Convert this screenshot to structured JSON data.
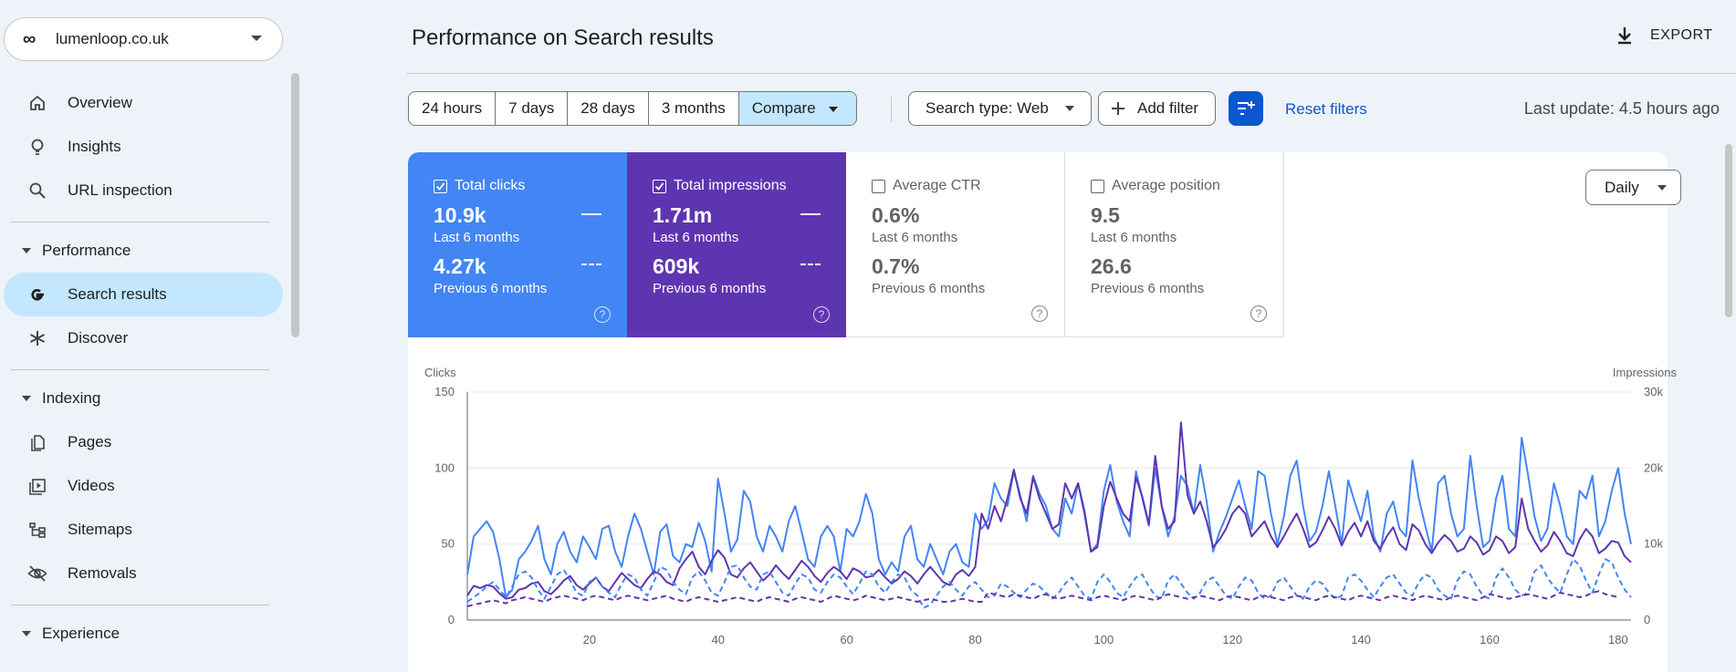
{
  "property": {
    "logo": "∞",
    "name": "lumenloop.co.uk"
  },
  "sidebar": {
    "items_top": [
      {
        "label": "Overview",
        "icon": "home-icon"
      },
      {
        "label": "Insights",
        "icon": "lightbulb-icon"
      },
      {
        "label": "URL inspection",
        "icon": "search-icon"
      }
    ],
    "performance": {
      "label": "Performance",
      "items": [
        {
          "label": "Search results",
          "icon": "google-g-icon"
        },
        {
          "label": "Discover",
          "icon": "asterisk-icon"
        }
      ]
    },
    "indexing": {
      "label": "Indexing",
      "items": [
        {
          "label": "Pages",
          "icon": "pages-icon"
        },
        {
          "label": "Videos",
          "icon": "video-icon"
        },
        {
          "label": "Sitemaps",
          "icon": "sitemap-icon"
        },
        {
          "label": "Removals",
          "icon": "eye-off-icon"
        }
      ]
    },
    "experience": {
      "label": "Experience"
    }
  },
  "header": {
    "title": "Performance on Search results",
    "export_label": "EXPORT"
  },
  "filters": {
    "ranges": [
      "24 hours",
      "7 days",
      "28 days",
      "3 months",
      "Compare"
    ],
    "search_type": "Search type: Web",
    "add_filter": "Add filter",
    "reset": "Reset filters",
    "last_update": "Last update: 4.5 hours ago"
  },
  "metrics": {
    "clicks": {
      "label": "Total clicks",
      "v1": "10.9k",
      "s1": "Last 6 months",
      "v2": "4.27k",
      "s2": "Previous 6 months"
    },
    "impressions": {
      "label": "Total impressions",
      "v1": "1.71m",
      "s1": "Last 6 months",
      "v2": "609k",
      "s2": "Previous 6 months"
    },
    "ctr": {
      "label": "Average CTR",
      "v1": "0.6%",
      "s1": "Last 6 months",
      "v2": "0.7%",
      "s2": "Previous 6 months"
    },
    "position": {
      "label": "Average position",
      "v1": "9.5",
      "s1": "Last 6 months",
      "v2": "26.6",
      "s2": "Previous 6 months"
    },
    "help": "?"
  },
  "granularity": "Daily",
  "chart_data": {
    "type": "line",
    "ylabel": "Clicks",
    "y2label": "Impressions",
    "ylim": [
      0,
      150
    ],
    "y2lim": [
      0,
      30000
    ],
    "yticks": [
      "0",
      "50",
      "100",
      "150"
    ],
    "y2ticks": [
      "0",
      "10k",
      "20k",
      "30k"
    ],
    "xticks": [
      20,
      40,
      60,
      80,
      100,
      120,
      140,
      160,
      180
    ],
    "xlim": [
      1,
      182
    ],
    "grid": true,
    "colors": {
      "clicks": "#4285f4",
      "impressions": "#5e35b1"
    },
    "series": [
      {
        "name": "Total clicks",
        "axis": "left",
        "style": "solid",
        "color": "#4285f4",
        "values": [
          30,
          55,
          60,
          65,
          58,
          40,
          15,
          20,
          40,
          45,
          52,
          62,
          40,
          30,
          50,
          58,
          45,
          38,
          55,
          48,
          40,
          60,
          62,
          45,
          35,
          55,
          70,
          60,
          45,
          30,
          58,
          63,
          42,
          38,
          50,
          48,
          64,
          52,
          32,
          93,
          70,
          45,
          53,
          85,
          78,
          55,
          45,
          62,
          55,
          45,
          65,
          75,
          58,
          40,
          35,
          55,
          62,
          55,
          32,
          60,
          55,
          65,
          83,
          70,
          40,
          30,
          38,
          32,
          55,
          62,
          40,
          35,
          50,
          40,
          30,
          45,
          50,
          38,
          35,
          70,
          60,
          66,
          90,
          80,
          75,
          98,
          82,
          65,
          95,
          83,
          75,
          60,
          55,
          80,
          70,
          90,
          72,
          45,
          50,
          85,
          102,
          78,
          65,
          55,
          98,
          80,
          62,
          100,
          75,
          55,
          68,
          95,
          88,
          70,
          102,
          78,
          45,
          58,
          68,
          80,
          92,
          75,
          60,
          98,
          95,
          70,
          50,
          68,
          95,
          105,
          75,
          52,
          58,
          75,
          98,
          75,
          50,
          92,
          78,
          65,
          85,
          55,
          45,
          70,
          78,
          60,
          55,
          105,
          80,
          62,
          45,
          90,
          95,
          70,
          55,
          60,
          108,
          75,
          48,
          52,
          80,
          95,
          60,
          55,
          120,
          95,
          68,
          52,
          60,
          90,
          75,
          55,
          50,
          85,
          80,
          95,
          55,
          65,
          85,
          100,
          70,
          50
        ]
      },
      {
        "name": "Total impressions",
        "axis": "right",
        "style": "solid",
        "color": "#5e35b1",
        "values": [
          3200,
          4500,
          4200,
          4600,
          4400,
          3500,
          2800,
          3000,
          4000,
          4200,
          4800,
          5000,
          3800,
          3400,
          4200,
          5200,
          5800,
          4600,
          4000,
          4800,
          5600,
          4400,
          3800,
          5000,
          6200,
          5400,
          4600,
          4200,
          5400,
          6400,
          6000,
          5000,
          4600,
          6800,
          8000,
          9000,
          7000,
          6000,
          7800,
          9200,
          8200,
          6000,
          5600,
          6800,
          7600,
          6400,
          5200,
          6000,
          7200,
          6200,
          5400,
          6600,
          7800,
          7000,
          5800,
          5000,
          6200,
          7000,
          6400,
          5400,
          6800,
          6400,
          5600,
          5800,
          6600,
          5600,
          4800,
          5400,
          6400,
          5800,
          4800,
          6000,
          7000,
          6000,
          5000,
          4600,
          6000,
          6600,
          5800,
          7000,
          14000,
          12000,
          15000,
          13000,
          16000,
          19800,
          16000,
          14000,
          18800,
          16000,
          14000,
          12000,
          12600,
          18000,
          16000,
          18000,
          14000,
          9000,
          9600,
          15000,
          18200,
          16000,
          14000,
          13000,
          18800,
          16200,
          12600,
          21600,
          15000,
          12000,
          13000,
          26000,
          16400,
          14000,
          15600,
          13000,
          9600,
          10600,
          12000,
          14000,
          15000,
          14000,
          11000,
          12000,
          13000,
          11000,
          9600,
          11000,
          12600,
          14000,
          12000,
          9600,
          10200,
          11800,
          13600,
          12000,
          9800,
          11600,
          12800,
          11000,
          13000,
          10400,
          9400,
          11000,
          12200,
          10000,
          9200,
          12600,
          11800,
          10000,
          8800,
          10200,
          11200,
          10400,
          9000,
          9400,
          11000,
          10200,
          8600,
          9200,
          11000,
          10400,
          8800,
          9600,
          16000,
          12000,
          10400,
          9000,
          9800,
          11600,
          10400,
          8800,
          8400,
          10600,
          12000,
          11000,
          8800,
          9400,
          10400,
          10200,
          8400,
          7600
        ]
      },
      {
        "name": "Total clicks (previous)",
        "axis": "left",
        "style": "dashed",
        "color": "#4285f4",
        "values": [
          12,
          15,
          18,
          22,
          25,
          20,
          15,
          22,
          30,
          32,
          28,
          20,
          14,
          22,
          30,
          33,
          26,
          18,
          16,
          25,
          28,
          22,
          18,
          15,
          24,
          30,
          28,
          20,
          16,
          25,
          35,
          33,
          25,
          20,
          17,
          28,
          32,
          26,
          18,
          16,
          25,
          35,
          36,
          28,
          22,
          20,
          30,
          32,
          25,
          18,
          16,
          24,
          30,
          28,
          20,
          18,
          25,
          30,
          28,
          22,
          17,
          24,
          32,
          30,
          22,
          18,
          25,
          30,
          28,
          20,
          16,
          8,
          10,
          16,
          22,
          25,
          20,
          16,
          22,
          25,
          20,
          15,
          16,
          24,
          22,
          18,
          15,
          20,
          24,
          22,
          18,
          14,
          18,
          24,
          28,
          22,
          16,
          14,
          25,
          30,
          25,
          18,
          15,
          22,
          28,
          30,
          22,
          16,
          14,
          26,
          30,
          24,
          18,
          14,
          18,
          26,
          28,
          22,
          16,
          14,
          22,
          28,
          26,
          18,
          14,
          16,
          25,
          28,
          22,
          16,
          14,
          22,
          26,
          24,
          18,
          14,
          16,
          28,
          30,
          26,
          20,
          15,
          22,
          28,
          30,
          24,
          18,
          16,
          25,
          30,
          28,
          20,
          16,
          14,
          26,
          32,
          30,
          22,
          16,
          14,
          28,
          34,
          28,
          20,
          16,
          18,
          32,
          36,
          28,
          22,
          18,
          30,
          40,
          36,
          26,
          18,
          30,
          40,
          38,
          28,
          20,
          15
        ]
      },
      {
        "name": "Total impressions (previous)",
        "axis": "right",
        "style": "dashed",
        "color": "#5e35b1",
        "values": [
          1800,
          2000,
          2200,
          2400,
          2600,
          2400,
          2200,
          2600,
          2800,
          3000,
          2800,
          2600,
          2400,
          2800,
          3000,
          3200,
          3000,
          2800,
          2600,
          3000,
          3200,
          3000,
          2800,
          2600,
          3000,
          3200,
          3000,
          2800,
          2600,
          2800,
          3000,
          3200,
          2800,
          2600,
          2400,
          2800,
          3000,
          2800,
          2600,
          2400,
          2600,
          2800,
          3000,
          2800,
          2600,
          2400,
          2800,
          3000,
          2800,
          2600,
          2400,
          2800,
          3000,
          2800,
          2600,
          2400,
          2800,
          3200,
          3000,
          2800,
          2600,
          2800,
          3200,
          3000,
          2800,
          2600,
          2800,
          3000,
          2800,
          2600,
          2400,
          2600,
          2800,
          2600,
          2400,
          2400,
          2600,
          2800,
          2600,
          2400,
          2400,
          3600,
          3400,
          3200,
          3000,
          3400,
          3200,
          3000,
          2800,
          3200,
          3400,
          3000,
          2800,
          3000,
          3200,
          3000,
          2800,
          2600,
          3000,
          3200,
          3000,
          2800,
          2600,
          3000,
          3200,
          3000,
          2800,
          2600,
          3000,
          3400,
          3200,
          3000,
          2800,
          3000,
          3200,
          3000,
          2800,
          2600,
          3000,
          3200,
          3000,
          2800,
          2600,
          3000,
          3200,
          3000,
          2800,
          2600,
          3000,
          3200,
          3000,
          2800,
          2600,
          3000,
          3200,
          3000,
          2800,
          2600,
          3000,
          3200,
          3000,
          2800,
          2600,
          3000,
          3200,
          3000,
          2800,
          2600,
          3000,
          3200,
          3000,
          2800,
          2600,
          3000,
          3200,
          3000,
          2800,
          2600,
          3000,
          3400,
          3200,
          3000,
          2800,
          3000,
          3200,
          3400,
          3200,
          3000,
          2800,
          3200,
          3600,
          3400,
          3200,
          3000,
          3200,
          3600,
          3800,
          3400,
          3200,
          3000
        ]
      }
    ]
  }
}
